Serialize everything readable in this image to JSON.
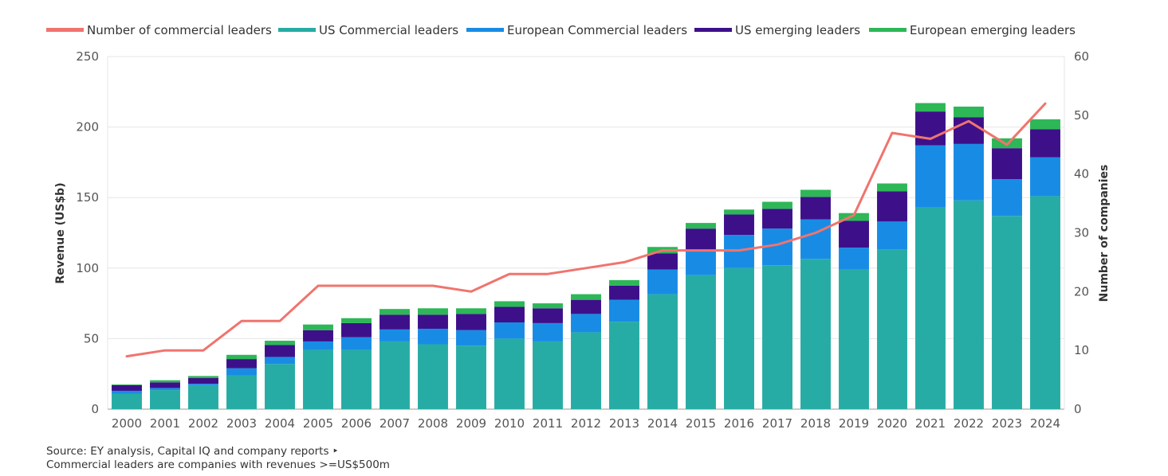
{
  "chart_data": {
    "type": "bar",
    "stacked": true,
    "categories": [
      "2000",
      "2001",
      "2002",
      "2003",
      "2004",
      "2005",
      "2006",
      "2007",
      "2008",
      "2009",
      "2010",
      "2011",
      "2012",
      "2013",
      "2014",
      "2015",
      "2016",
      "2017",
      "2018",
      "2019",
      "2020",
      "2021",
      "2022",
      "2023",
      "2024"
    ],
    "series": [
      {
        "name": "US Commercial leaders",
        "color": "#27aca5",
        "values": [
          11,
          13.5,
          17,
          24,
          32,
          42,
          42,
          48,
          46,
          45,
          50,
          48,
          54.5,
          62,
          81.5,
          95,
          100,
          102,
          106.5,
          99,
          113,
          143,
          148,
          137,
          151
        ]
      },
      {
        "name": "European Commercial leaders",
        "color": "#188ce5",
        "values": [
          2,
          1.5,
          1,
          5,
          5,
          6,
          9,
          8.5,
          11,
          11,
          11.5,
          13,
          13,
          15.5,
          17.5,
          17,
          23.5,
          26,
          28,
          15.5,
          20,
          44,
          40,
          26,
          27.5
        ]
      },
      {
        "name": "US emerging leaders",
        "color": "#3d108a",
        "values": [
          4,
          4,
          4,
          6.5,
          8.5,
          8,
          10,
          10.5,
          10,
          11.5,
          11,
          10.5,
          10,
          10,
          11.5,
          16,
          14.5,
          14,
          16,
          19,
          21.5,
          24,
          19,
          22,
          20
        ]
      },
      {
        "name": "European emerging leaders",
        "color": "#2db757",
        "values": [
          0.5,
          1.5,
          1.5,
          3,
          3,
          4,
          3.5,
          4,
          4.5,
          4,
          4,
          3.5,
          4,
          4,
          4.5,
          4,
          3.5,
          5,
          5,
          5.5,
          5.5,
          6,
          7.5,
          7,
          7
        ]
      }
    ],
    "line_series": {
      "name": "Number of commercial leaders",
      "color": "#f0746e",
      "axis": "right",
      "values": [
        9,
        10,
        10,
        15,
        15,
        21,
        21,
        21,
        21,
        20,
        23,
        23,
        24,
        25,
        27,
        27,
        27,
        28,
        30,
        33,
        47,
        46,
        49,
        45,
        52
      ]
    },
    "ylim": [
      0,
      250
    ],
    "yticks": [
      "0",
      "50",
      "100",
      "150",
      "200",
      "250"
    ],
    "y2lim": [
      0,
      60
    ],
    "y2ticks": [
      "0",
      "10",
      "20",
      "30",
      "40",
      "50",
      "60"
    ],
    "ylabel": "Revenue (US$b)",
    "y2label": "Number of companies",
    "xlabel": "",
    "legend": [
      {
        "label": "Number of commercial leaders",
        "color": "#f0746e"
      },
      {
        "label": "US Commercial leaders",
        "color": "#27aca5"
      },
      {
        "label": "European Commercial leaders",
        "color": "#188ce5"
      },
      {
        "label": "US emerging leaders",
        "color": "#3d108a"
      },
      {
        "label": "European emerging leaders",
        "color": "#2db757"
      }
    ],
    "legend_position": "top-left",
    "grid": true
  },
  "notes": {
    "source": "Source: EY analysis, Capital IQ and company reports ‣",
    "definition": "Commercial leaders are companies with revenues >=US$500m"
  }
}
